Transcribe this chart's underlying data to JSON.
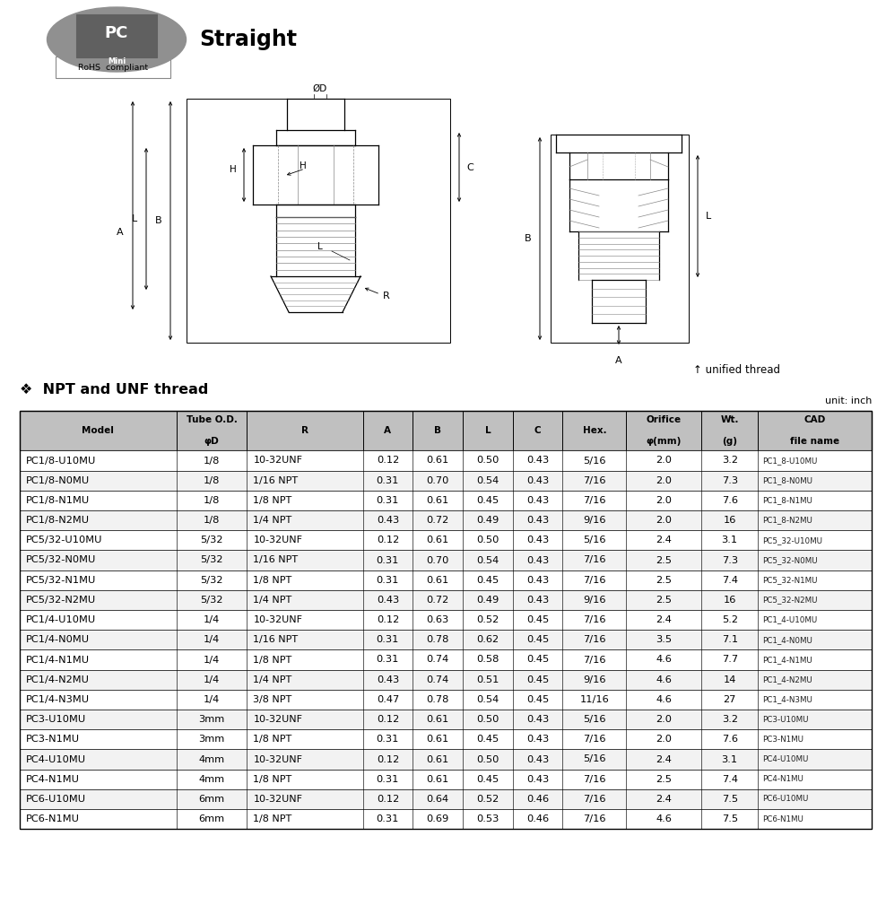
{
  "title_text": "Straight",
  "section_title": "❖  NPT and UNF thread",
  "unit_text": "unit: inch",
  "rohs_text": "RoHS  compliant",
  "unified_thread_text": "↑ unified thread",
  "headers_row1": [
    "Model",
    "Tube O.D.",
    "R",
    "A",
    "B",
    "L",
    "C",
    "Hex.",
    "Orifice",
    "Wt.",
    "CAD"
  ],
  "headers_row2": [
    "",
    "φD",
    "",
    "",
    "",
    "",
    "",
    "",
    "φ(mm)",
    "(g)",
    "file name"
  ],
  "col_widths": [
    1.38,
    0.62,
    1.02,
    0.44,
    0.44,
    0.44,
    0.44,
    0.56,
    0.66,
    0.5,
    1.0
  ],
  "rows": [
    [
      "PC1/8-U10MU",
      "1/8",
      "10-32UNF",
      "0.12",
      "0.61",
      "0.50",
      "0.43",
      "5/16",
      "2.0",
      "3.2",
      "PC1_8-U10MU"
    ],
    [
      "PC1/8-N0MU",
      "1/8",
      "1/16 NPT",
      "0.31",
      "0.70",
      "0.54",
      "0.43",
      "7/16",
      "2.0",
      "7.3",
      "PC1_8-N0MU"
    ],
    [
      "PC1/8-N1MU",
      "1/8",
      "1/8 NPT",
      "0.31",
      "0.61",
      "0.45",
      "0.43",
      "7/16",
      "2.0",
      "7.6",
      "PC1_8-N1MU"
    ],
    [
      "PC1/8-N2MU",
      "1/8",
      "1/4 NPT",
      "0.43",
      "0.72",
      "0.49",
      "0.43",
      "9/16",
      "2.0",
      "16",
      "PC1_8-N2MU"
    ],
    [
      "PC5/32-U10MU",
      "5/32",
      "10-32UNF",
      "0.12",
      "0.61",
      "0.50",
      "0.43",
      "5/16",
      "2.4",
      "3.1",
      "PC5_32-U10MU"
    ],
    [
      "PC5/32-N0MU",
      "5/32",
      "1/16 NPT",
      "0.31",
      "0.70",
      "0.54",
      "0.43",
      "7/16",
      "2.5",
      "7.3",
      "PC5_32-N0MU"
    ],
    [
      "PC5/32-N1MU",
      "5/32",
      "1/8 NPT",
      "0.31",
      "0.61",
      "0.45",
      "0.43",
      "7/16",
      "2.5",
      "7.4",
      "PC5_32-N1MU"
    ],
    [
      "PC5/32-N2MU",
      "5/32",
      "1/4 NPT",
      "0.43",
      "0.72",
      "0.49",
      "0.43",
      "9/16",
      "2.5",
      "16",
      "PC5_32-N2MU"
    ],
    [
      "PC1/4-U10MU",
      "1/4",
      "10-32UNF",
      "0.12",
      "0.63",
      "0.52",
      "0.45",
      "7/16",
      "2.4",
      "5.2",
      "PC1_4-U10MU"
    ],
    [
      "PC1/4-N0MU",
      "1/4",
      "1/16 NPT",
      "0.31",
      "0.78",
      "0.62",
      "0.45",
      "7/16",
      "3.5",
      "7.1",
      "PC1_4-N0MU"
    ],
    [
      "PC1/4-N1MU",
      "1/4",
      "1/8 NPT",
      "0.31",
      "0.74",
      "0.58",
      "0.45",
      "7/16",
      "4.6",
      "7.7",
      "PC1_4-N1MU"
    ],
    [
      "PC1/4-N2MU",
      "1/4",
      "1/4 NPT",
      "0.43",
      "0.74",
      "0.51",
      "0.45",
      "9/16",
      "4.6",
      "14",
      "PC1_4-N2MU"
    ],
    [
      "PC1/4-N3MU",
      "1/4",
      "3/8 NPT",
      "0.47",
      "0.78",
      "0.54",
      "0.45",
      "11/16",
      "4.6",
      "27",
      "PC1_4-N3MU"
    ],
    [
      "PC3-U10MU",
      "3mm",
      "10-32UNF",
      "0.12",
      "0.61",
      "0.50",
      "0.43",
      "5/16",
      "2.0",
      "3.2",
      "PC3-U10MU"
    ],
    [
      "PC3-N1MU",
      "3mm",
      "1/8 NPT",
      "0.31",
      "0.61",
      "0.45",
      "0.43",
      "7/16",
      "2.0",
      "7.6",
      "PC3-N1MU"
    ],
    [
      "PC4-U10MU",
      "4mm",
      "10-32UNF",
      "0.12",
      "0.61",
      "0.50",
      "0.43",
      "5/16",
      "2.4",
      "3.1",
      "PC4-U10MU"
    ],
    [
      "PC4-N1MU",
      "4mm",
      "1/8 NPT",
      "0.31",
      "0.61",
      "0.45",
      "0.43",
      "7/16",
      "2.5",
      "7.4",
      "PC4-N1MU"
    ],
    [
      "PC6-U10MU",
      "6mm",
      "10-32UNF",
      "0.12",
      "0.64",
      "0.52",
      "0.46",
      "7/16",
      "2.4",
      "7.5",
      "PC6-U10MU"
    ],
    [
      "PC6-N1MU",
      "6mm",
      "1/8 NPT",
      "0.31",
      "0.69",
      "0.53",
      "0.46",
      "7/16",
      "4.6",
      "7.5",
      "PC6-N1MU"
    ]
  ],
  "bg_color": "#ffffff",
  "header_bg": "#c0c0c0",
  "line_color": "#000000",
  "dim_color": "#404040",
  "thread_color": "#888888"
}
